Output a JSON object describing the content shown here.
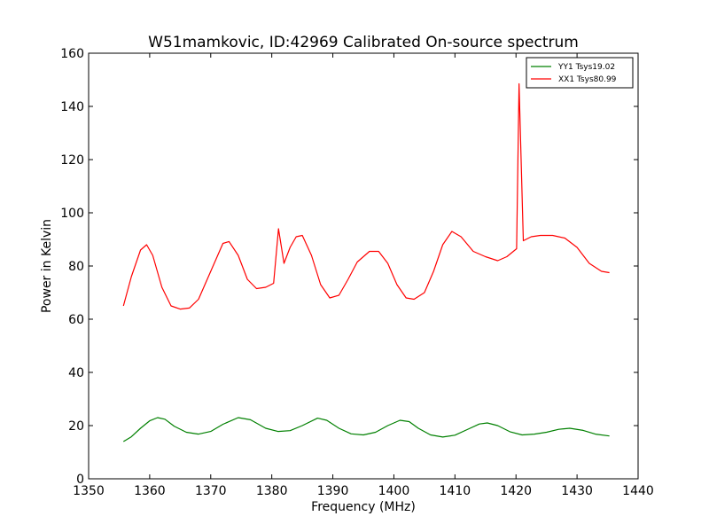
{
  "chart_data": {
    "type": "line",
    "title": "W51mamkovic, ID:42969 Calibrated On-source spectrum",
    "xlabel": "Frequency (MHz)",
    "ylabel": "Power in Kelvin",
    "xlim": [
      1350,
      1440
    ],
    "ylim": [
      0,
      160
    ],
    "xticks": [
      1350,
      1360,
      1370,
      1380,
      1390,
      1400,
      1410,
      1420,
      1430,
      1440
    ],
    "yticks": [
      0,
      20,
      40,
      60,
      80,
      100,
      120,
      140,
      160
    ],
    "grid": false,
    "legend_position": "top-right",
    "series": [
      {
        "name": "YY1 Tsys19.02",
        "color": "#008000",
        "x": [
          1355.7,
          1357,
          1358.5,
          1360,
          1361.3,
          1362.5,
          1364,
          1366,
          1368,
          1370,
          1372,
          1374.5,
          1376.5,
          1379,
          1381,
          1383,
          1385,
          1387.5,
          1389,
          1391,
          1393,
          1395,
          1397,
          1399,
          1401,
          1402.5,
          1404,
          1406,
          1408,
          1410,
          1412,
          1414,
          1415.3,
          1417,
          1419,
          1421,
          1423,
          1425,
          1427,
          1428.8,
          1431,
          1433,
          1435.3
        ],
        "y": [
          14.0,
          15.8,
          19.0,
          21.8,
          23.0,
          22.4,
          19.8,
          17.5,
          16.8,
          17.8,
          20.5,
          23.0,
          22.2,
          19.0,
          17.8,
          18.1,
          20.0,
          22.8,
          22.0,
          19.0,
          16.9,
          16.5,
          17.5,
          20.0,
          22.0,
          21.5,
          19.0,
          16.5,
          15.7,
          16.4,
          18.5,
          20.6,
          21.0,
          20.0,
          17.7,
          16.5,
          16.8,
          17.5,
          18.6,
          19.0,
          18.2,
          16.8,
          16.1
        ]
      },
      {
        "name": "XX1 Tsys80.99",
        "color": "#ff0000",
        "x": [
          1355.7,
          1357,
          1358.5,
          1359.5,
          1360.5,
          1362,
          1363.5,
          1365,
          1366.5,
          1368,
          1370,
          1372,
          1373,
          1374.5,
          1376,
          1377.5,
          1379,
          1380.3,
          1381.1,
          1382,
          1383,
          1384,
          1385,
          1386.5,
          1388,
          1389.5,
          1391,
          1392.5,
          1394,
          1396,
          1397.5,
          1399,
          1400.5,
          1402,
          1403.3,
          1405,
          1406.5,
          1408,
          1409.5,
          1411,
          1413,
          1415,
          1417,
          1418.5,
          1420.1,
          1420.5,
          1421.2,
          1422.5,
          1424,
          1426,
          1428,
          1430,
          1432,
          1434,
          1435.3
        ],
        "y": [
          65.0,
          76.0,
          86.0,
          88.0,
          84.0,
          72.0,
          65.0,
          63.8,
          64.2,
          67.5,
          78.0,
          88.5,
          89.2,
          84.0,
          75.0,
          71.5,
          72.0,
          73.5,
          94.0,
          81.0,
          87.0,
          91.0,
          91.5,
          84.0,
          73.0,
          68.0,
          69.0,
          75.0,
          81.5,
          85.5,
          85.5,
          81.0,
          73.0,
          68.0,
          67.5,
          70.0,
          78.0,
          88.0,
          93.0,
          91.0,
          85.5,
          83.5,
          82.0,
          83.5,
          86.5,
          148.5,
          89.5,
          91.0,
          91.5,
          91.5,
          90.5,
          87.0,
          81.0,
          78.0,
          77.5
        ]
      }
    ]
  }
}
